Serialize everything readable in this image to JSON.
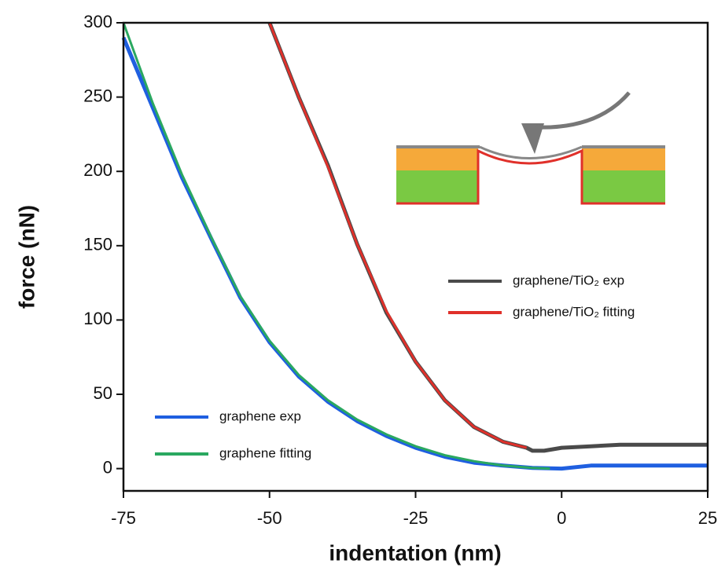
{
  "chart_data": {
    "type": "line",
    "xlabel": "indentation (nm)",
    "ylabel": "force (nN)",
    "xlim": [
      -75,
      25
    ],
    "ylim": [
      -15,
      300
    ],
    "xticks": [
      -75,
      -50,
      -25,
      0,
      25
    ],
    "yticks": [
      0,
      50,
      100,
      150,
      200,
      250,
      300
    ],
    "series": [
      {
        "name": "graphene/TiO₂ exp",
        "color": "#4a4a4a",
        "x": [
          -50,
          -45,
          -40,
          -35,
          -30,
          -25,
          -20,
          -15,
          -10,
          -6,
          -5,
          -3,
          0,
          5,
          10,
          15,
          20,
          25
        ],
        "values": [
          300,
          250,
          204,
          151,
          105,
          72,
          46,
          28,
          18,
          14,
          12,
          12,
          14,
          15,
          16,
          16,
          16,
          16
        ]
      },
      {
        "name": "graphene/TiO₂ fitting",
        "color": "#e0302a",
        "x": [
          -50,
          -45,
          -40,
          -35,
          -30,
          -25,
          -20,
          -15,
          -10,
          -6
        ],
        "values": [
          300,
          250,
          203,
          151,
          106,
          72,
          46,
          28,
          18,
          14
        ]
      },
      {
        "name": "graphene exp",
        "color": "#1f5fe0",
        "x": [
          -75,
          -70,
          -65,
          -60,
          -55,
          -50,
          -45,
          -40,
          -35,
          -30,
          -25,
          -20,
          -15,
          -10,
          -5,
          0,
          5,
          10,
          15,
          20,
          25
        ],
        "values": [
          290,
          243,
          196,
          155,
          115,
          85,
          62,
          45,
          32,
          22,
          14,
          8,
          4,
          2,
          0.5,
          0,
          2,
          2,
          2,
          2,
          2
        ]
      },
      {
        "name": "graphene fitting",
        "color": "#2aa860",
        "x": [
          -75,
          -70,
          -65,
          -60,
          -55,
          -50,
          -45,
          -40,
          -35,
          -30,
          -25,
          -20,
          -15,
          -10,
          -5,
          -2
        ],
        "values": [
          300,
          246,
          198,
          156,
          116,
          86,
          63,
          46,
          33,
          23,
          15,
          9,
          5,
          2,
          0.5,
          0
        ]
      }
    ]
  }
}
